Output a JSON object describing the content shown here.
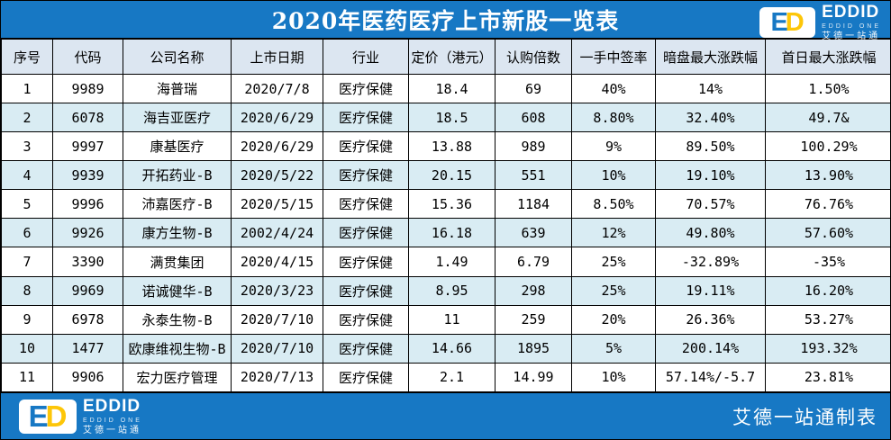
{
  "header": {
    "title": "2020年医药医疗上市新股一览表"
  },
  "logo": {
    "tile_e": "E",
    "tile_d": "D",
    "name": "EDDID",
    "subtitle": "EDDID ONE",
    "cn_name": "艾德一站通"
  },
  "chart_data": {
    "type": "table",
    "title": "2020年医药医疗上市新股一览表",
    "columns": [
      "序号",
      "代码",
      "公司名称",
      "上市日期",
      "行业",
      "定价（港元）",
      "认购倍数",
      "一手中签率",
      "暗盘最大涨跌幅",
      "首日最大涨跌幅"
    ],
    "rows": [
      [
        "1",
        "9989",
        "海普瑞",
        "2020/7/8",
        "医疗保健",
        "18.4",
        "69",
        "40%",
        "14%",
        "1.50%"
      ],
      [
        "2",
        "6078",
        "海吉亚医疗",
        "2020/6/29",
        "医疗保健",
        "18.5",
        "608",
        "8.80%",
        "32.40%",
        "49.7&"
      ],
      [
        "3",
        "9997",
        "康基医疗",
        "2020/6/29",
        "医疗保健",
        "13.88",
        "989",
        "9%",
        "89.50%",
        "100.29%"
      ],
      [
        "4",
        "9939",
        "开拓药业-B",
        "2020/5/22",
        "医疗保健",
        "20.15",
        "551",
        "10%",
        "19.10%",
        "13.90%"
      ],
      [
        "5",
        "9996",
        "沛嘉医疗-B",
        "2020/5/15",
        "医疗保健",
        "15.36",
        "1184",
        "8.50%",
        "70.57%",
        "76.76%"
      ],
      [
        "6",
        "9926",
        "康方生物-B",
        "2002/4/24",
        "医疗保健",
        "16.18",
        "639",
        "12%",
        "49.80%",
        "57.60%"
      ],
      [
        "7",
        "3390",
        "满贯集团",
        "2020/4/15",
        "医疗保健",
        "1.49",
        "6.79",
        "25%",
        "-32.89%",
        "-35%"
      ],
      [
        "8",
        "9969",
        "诺诚健华-B",
        "2020/3/23",
        "医疗保健",
        "8.95",
        "298",
        "25%",
        "19.11%",
        "16.20%"
      ],
      [
        "9",
        "6978",
        "永泰生物-B",
        "2020/7/10",
        "医疗保健",
        "11",
        "259",
        "20%",
        "26.36%",
        "53.27%"
      ],
      [
        "10",
        "1477",
        "欧康维视生物-B",
        "2020/7/10",
        "医疗保健",
        "14.66",
        "1895",
        "5%",
        "200.14%",
        "193.32%"
      ],
      [
        "11",
        "9906",
        "宏力医疗管理",
        "2020/7/13",
        "医疗保健",
        "2.1",
        "14.99",
        "10%",
        "57.14%/-5.7",
        "23.81%"
      ]
    ]
  },
  "footer": {
    "credit": "艾德一站通制表"
  },
  "colors": {
    "brand_blue": "#1778C4",
    "row_alt_blue": "#D9ECF3",
    "header_row_blue": "#DCE6F1",
    "logo_yellow": "#FDC608",
    "border_black": "#000000"
  }
}
